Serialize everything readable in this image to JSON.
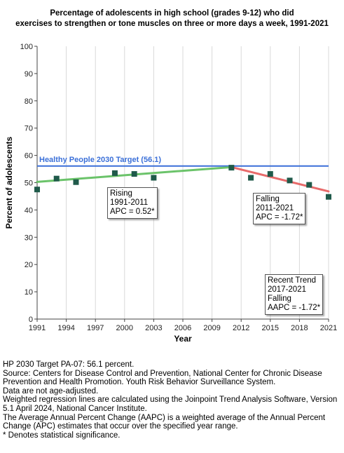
{
  "title_lines": [
    "Percentage of adolescents in high school (grades 9-12) who did",
    "exercises to strengthen or tone muscles on three or more days a week, 1991-2021"
  ],
  "chart_data": {
    "type": "scatter",
    "xlabel": "Year",
    "ylabel": "Percent of adolescents",
    "xlim": [
      1991,
      2021
    ],
    "ylim": [
      0,
      100
    ],
    "x_ticks": [
      1991,
      1994,
      1997,
      2000,
      2003,
      2006,
      2009,
      2012,
      2015,
      2018,
      2021
    ],
    "y_ticks": [
      0,
      10,
      20,
      30,
      40,
      50,
      60,
      70,
      80,
      90,
      100
    ],
    "grid": "vertical only",
    "observed": {
      "x": [
        1991,
        1993,
        1995,
        1999,
        2001,
        2003,
        2011,
        2013,
        2015,
        2017,
        2019,
        2021
      ],
      "y": [
        47.5,
        51.5,
        50.2,
        53.5,
        53.2,
        51.8,
        55.5,
        51.8,
        53.2,
        50.8,
        49.2,
        44.8
      ],
      "color": "#1f5a4a"
    },
    "trend_segments": [
      {
        "x": [
          1991,
          2011
        ],
        "y": [
          50.3,
          55.7
        ],
        "color": "#6bc36a"
      },
      {
        "x": [
          2011,
          2021
        ],
        "y": [
          55.7,
          46.8
        ],
        "color": "#e86b6b"
      }
    ],
    "target": {
      "value": 56.1,
      "label": "Healthy People 2030 Target (56.1)",
      "color": "#3a6fd8"
    },
    "annotations": [
      {
        "lines": [
          "Rising",
          "1991-2011",
          "APC =  0.52*"
        ]
      },
      {
        "lines": [
          "Falling",
          "2011-2021",
          "APC = -1.72*"
        ]
      },
      {
        "lines": [
          "Recent Trend",
          "2017-2021",
          "Falling",
          "AAPC = -1.72*"
        ]
      }
    ]
  },
  "footnotes": [
    "HP 2030 Target PA-07: 56.1 percent.",
    "Source: Centers for Disease Control and Prevention, National Center for Chronic Disease Prevention and Health Promotion. Youth Risk Behavior Surveillance System.",
    "Data are not age-adjusted.",
    "Weighted regression lines are calculated using the Joinpoint Trend Analysis Software, Version 5.1 April 2024, National Cancer Institute.",
    "The Average Annual Percent Change (AAPC) is a weighted average of the Annual Percent Change (APC) estimates that occur over the specified year range.",
    "* Denotes statistical significance."
  ]
}
